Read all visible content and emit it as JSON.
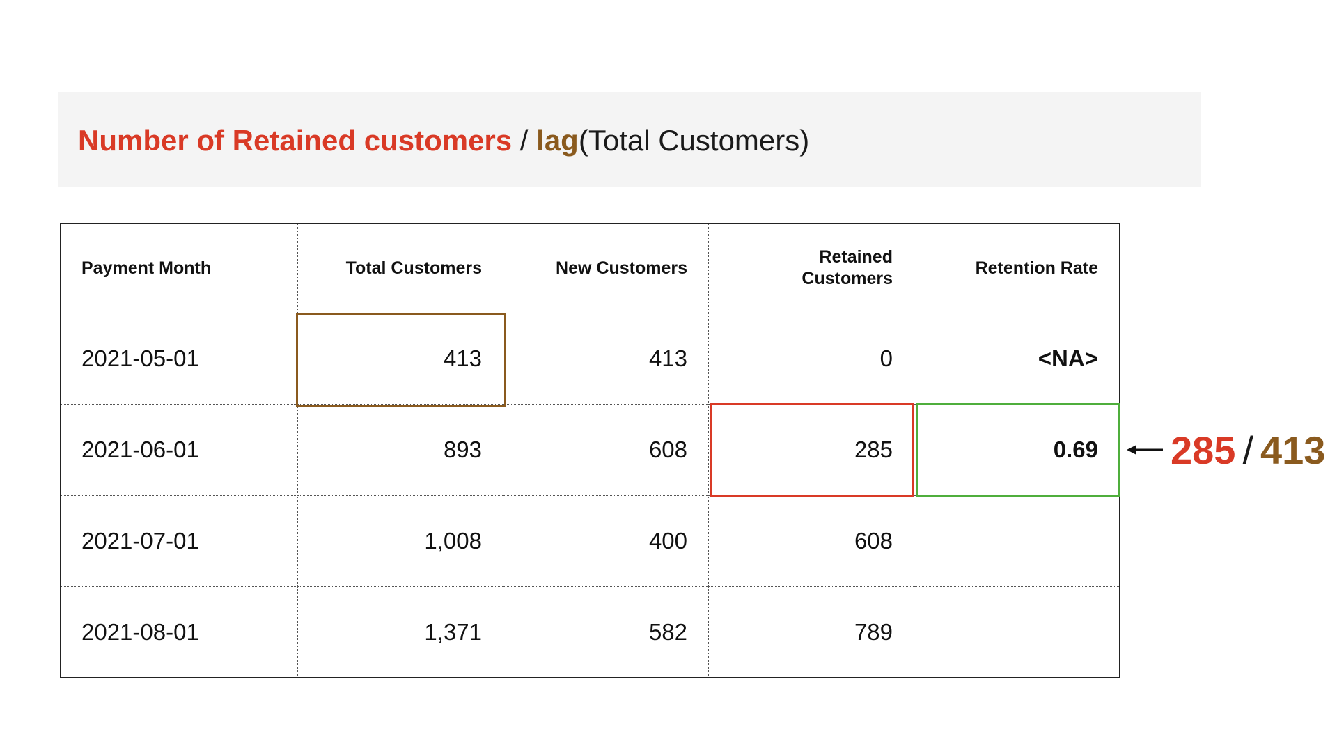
{
  "formula": {
    "numerator": "Number of Retained customers",
    "separator": " / ",
    "function_name": "lag",
    "argument": "(Total Customers)"
  },
  "table": {
    "columns": [
      "Payment Month",
      "Total Customers",
      "New Customers",
      "Retained Customers",
      "Retention Rate"
    ],
    "rows": [
      [
        "2021-05-01",
        "413",
        "413",
        "0",
        "<NA>"
      ],
      [
        "2021-06-01",
        "893",
        "608",
        "285",
        "0.69"
      ],
      [
        "2021-07-01",
        "1,008",
        "400",
        "608",
        ""
      ],
      [
        "2021-08-01",
        "1,371",
        "582",
        "789",
        ""
      ]
    ]
  },
  "calculation": {
    "numerator": "285",
    "separator": "/",
    "denominator": "413"
  },
  "colors": {
    "retained_red": "#d93a26",
    "lag_brown": "#8a5a1e",
    "result_green": "#4fae3c",
    "na_gray": "#9a9a9a",
    "formula_bg": "#f4f4f4"
  }
}
